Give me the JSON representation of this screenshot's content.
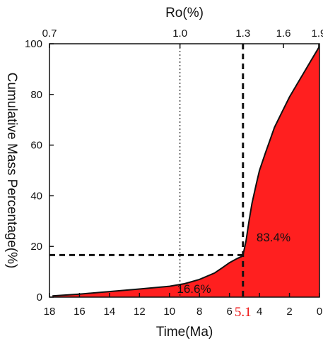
{
  "chart_data": {
    "type": "area",
    "title": "",
    "xlabel": "Time(Ma)",
    "ylabel": "Cumulative Mass Percentage(%)",
    "top_xlabel": "Ro(%)",
    "x_reversed": true,
    "xlim": [
      18,
      0
    ],
    "ylim": [
      0,
      100
    ],
    "x_ticks": [
      "18",
      "16",
      "14",
      "12",
      "10",
      "8",
      "6",
      "4",
      "2",
      "0"
    ],
    "y_ticks": [
      "0",
      "20",
      "40",
      "60",
      "80",
      "100"
    ],
    "top_ticks": [
      {
        "label": "0.7",
        "time": 18
      },
      {
        "label": "1.0",
        "time": 9.3
      },
      {
        "label": "1.3",
        "time": 5.1
      },
      {
        "label": "1.6",
        "time": 2.4
      },
      {
        "label": "1.9",
        "time": 0.05
      }
    ],
    "fill_color": "#ff1f1f",
    "series": [
      {
        "x": [
          17.8,
          16,
          14,
          12,
          10,
          9,
          8,
          7,
          6.5,
          6,
          5.5,
          5.2,
          5.1,
          4.9,
          4.7,
          4.5,
          4.2,
          4.0,
          3.6,
          3.3,
          3.0,
          2.5,
          2.0,
          1.5,
          1.0,
          0.5,
          0.2,
          0.0
        ],
        "y": [
          0.5,
          1.2,
          2.2,
          3.2,
          4.3,
          5.3,
          7.0,
          9.5,
          11.5,
          13.6,
          15.2,
          16.0,
          16.6,
          22,
          30,
          37,
          45,
          50,
          57,
          62,
          67,
          73,
          79,
          84,
          89,
          94,
          97,
          99
        ]
      }
    ],
    "guides": {
      "time": 5.1,
      "value": 16.6,
      "ro_marker_time": 9.3
    },
    "annotations": {
      "left_pct": "16.6%",
      "right_pct": "83.4%",
      "highlight_time": "5.1"
    }
  }
}
